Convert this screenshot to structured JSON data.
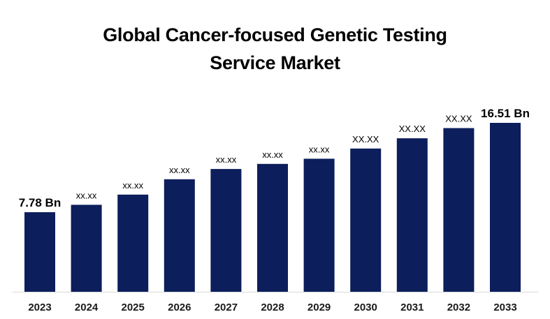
{
  "chart_data": {
    "type": "bar",
    "title_lines": [
      "Global Cancer-focused Genetic Testing",
      "Service Market"
    ],
    "xlabel": "",
    "ylabel": "",
    "categories": [
      "2023",
      "2024",
      "2025",
      "2026",
      "2027",
      "2028",
      "2029",
      "2030",
      "2031",
      "2032",
      "2033"
    ],
    "values": [
      7.78,
      8.5,
      9.5,
      11.0,
      12.0,
      12.5,
      13.0,
      14.0,
      15.0,
      16.0,
      16.51
    ],
    "data_labels": [
      "7.78 Bn",
      "xx.xx",
      "xx.xx",
      "xx.xx",
      "xx.xx",
      "xx.xx",
      "xx.xx",
      "XX.XX",
      "XX.XX",
      "XX.XX",
      "16.51 Bn"
    ],
    "ylim": [
      0,
      16.51
    ],
    "grid": false,
    "legend": "none",
    "bar_color": "#0c1e5b"
  }
}
